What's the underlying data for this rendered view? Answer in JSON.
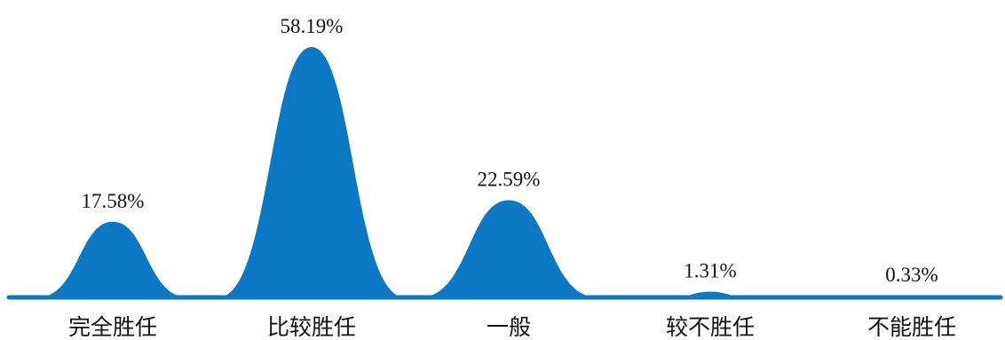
{
  "chart_data": {
    "type": "area",
    "categories": [
      "完全胜任",
      "比较胜任",
      "一般",
      "较不胜任",
      "不能胜任"
    ],
    "values": [
      17.58,
      58.19,
      22.59,
      1.31,
      0.33
    ],
    "value_labels": [
      "17.58%",
      "58.19%",
      "22.59%",
      "1.31%",
      "0.33%"
    ],
    "unit": "%",
    "title": "",
    "xlabel": "",
    "ylabel": "",
    "ylim": [
      0,
      60
    ],
    "grid": false,
    "legend": "none",
    "colors": {
      "fill": "#0a78c2",
      "baseline": "#0a78c2",
      "text": "#111111"
    }
  }
}
